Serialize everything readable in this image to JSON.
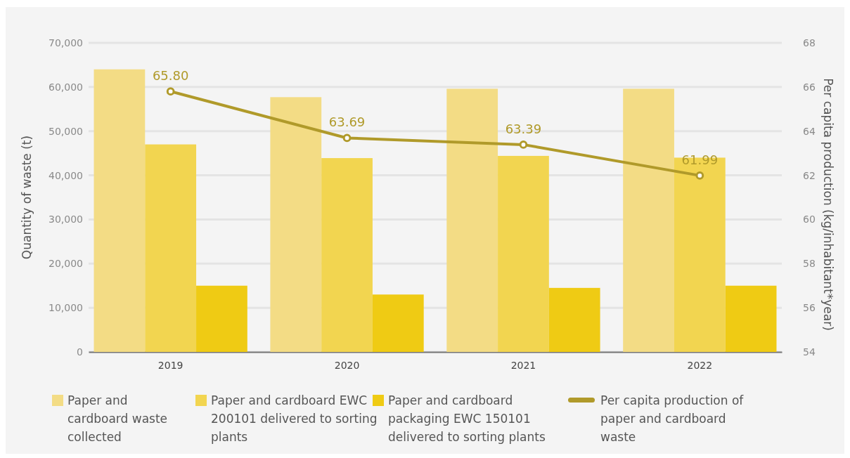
{
  "chart_data": {
    "type": "bar",
    "categories": [
      "2019",
      "2020",
      "2021",
      "2022"
    ],
    "ylabel": "Quantity of waste (t)",
    "y2label": "Per capita production (kg/inhabitant*year)",
    "ylim": [
      0,
      70000
    ],
    "yticks": [
      {
        "value": 0,
        "label": "0"
      },
      {
        "value": 10000,
        "label": "10,000"
      },
      {
        "value": 20000,
        "label": "20,000"
      },
      {
        "value": 30000,
        "label": "30,000"
      },
      {
        "value": 40000,
        "label": "40,000"
      },
      {
        "value": 50000,
        "label": "50,000"
      },
      {
        "value": 60000,
        "label": "60,000"
      },
      {
        "value": 70000,
        "label": "70,000"
      }
    ],
    "y2lim": [
      54,
      68
    ],
    "y2ticks": [
      54,
      56,
      58,
      60,
      62,
      64,
      66,
      68
    ],
    "grid": "y",
    "legend": "bottom",
    "series": [
      {
        "name": "Paper and cardboard waste collected",
        "color": "#f3dc85",
        "values": [
          64000,
          57700,
          59600,
          59600
        ]
      },
      {
        "name": "Paper and cardboard EWC 200101 delivered to sorting plants",
        "color": "#f2d550",
        "values": [
          47000,
          43900,
          44400,
          44000
        ]
      },
      {
        "name": "Paper and cardboard packaging EWC 150101 delivered to sorting plants",
        "color": "#efcb14",
        "values": [
          15000,
          13000,
          14500,
          15000
        ]
      },
      {
        "name": "Per capita production of paper and cardboard waste",
        "type": "line",
        "axis": "y2",
        "color": "#b09a2a",
        "marker": "circle",
        "values": [
          65.8,
          63.69,
          63.39,
          61.99
        ],
        "value_labels": [
          "65.80",
          "63.69",
          "63.39",
          "61.99"
        ]
      }
    ]
  }
}
